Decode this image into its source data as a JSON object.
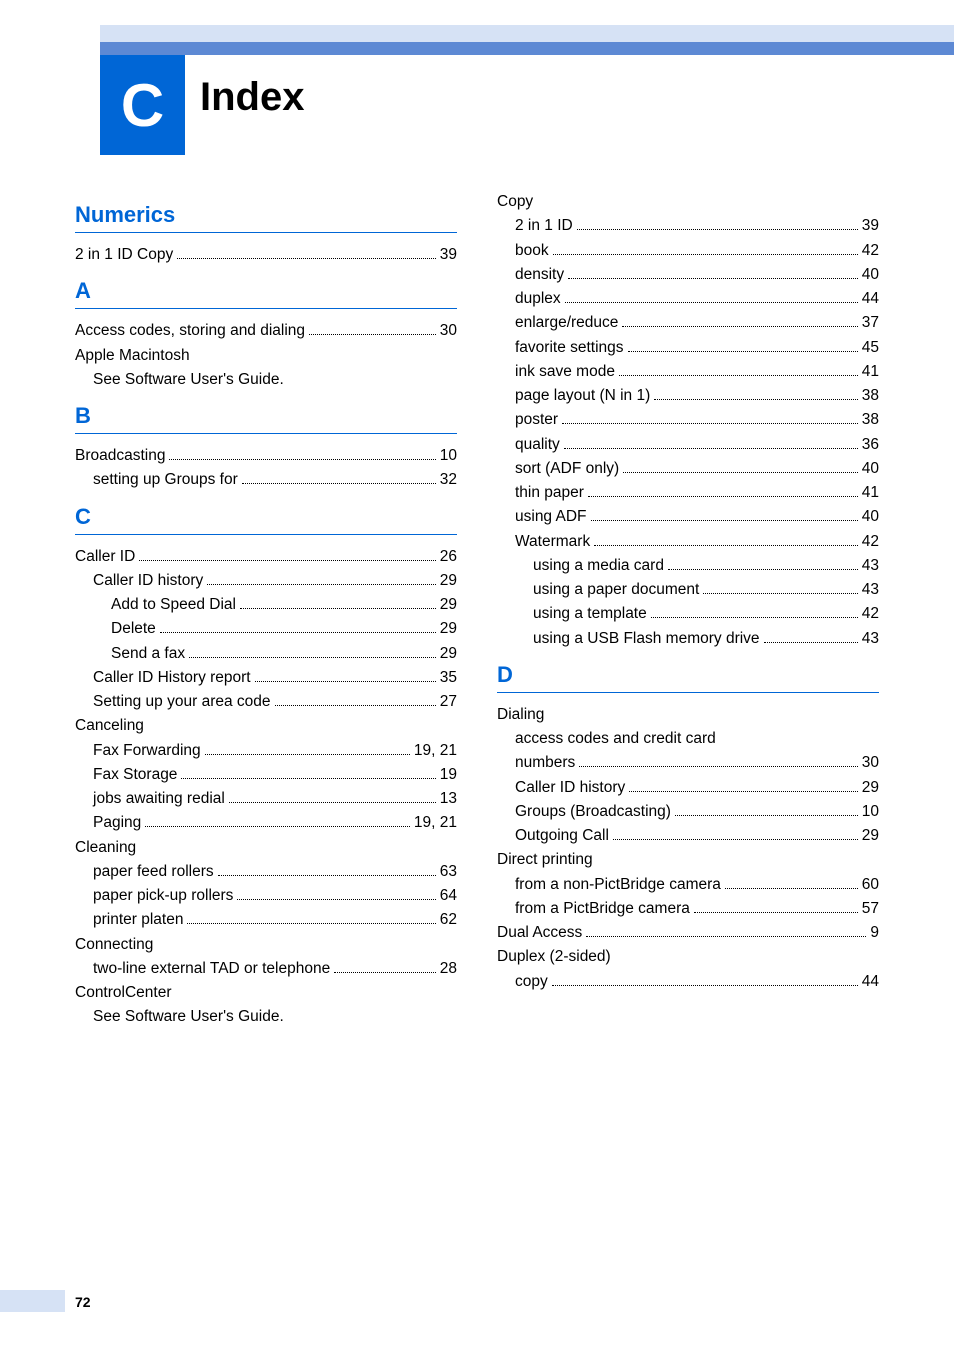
{
  "chapter_letter": "C",
  "title": "Index",
  "page_number": "72",
  "colors": {
    "header_light": "#d6e2f5",
    "header_dark": "#5d89d4",
    "chapter_box": "#0066d6",
    "section_head": "#0066d6",
    "text": "#000000",
    "bg": "#ffffff"
  },
  "left_sections": [
    {
      "head": "Numerics",
      "entries": [
        {
          "label": "2 in 1 ID Copy",
          "page": "39",
          "indent": 0
        }
      ]
    },
    {
      "head": "A",
      "entries": [
        {
          "label": "Access codes, storing and dialing",
          "page": "30",
          "indent": 0
        },
        {
          "label": "Apple Macintosh",
          "page": "",
          "indent": 0,
          "nodots": true
        },
        {
          "label": "See Software User's Guide.",
          "page": "",
          "indent": 1,
          "nodots": true
        }
      ]
    },
    {
      "head": "B",
      "entries": [
        {
          "label": "Broadcasting",
          "page": "10",
          "indent": 0
        },
        {
          "label": "setting up Groups for",
          "page": "32",
          "indent": 1
        }
      ]
    },
    {
      "head": "C",
      "entries": [
        {
          "label": "Caller ID",
          "page": "26",
          "indent": 0
        },
        {
          "label": "Caller ID history",
          "page": "29",
          "indent": 1
        },
        {
          "label": "Add to Speed Dial",
          "page": "29",
          "indent": 2
        },
        {
          "label": "Delete",
          "page": "29",
          "indent": 2
        },
        {
          "label": "Send a fax",
          "page": "29",
          "indent": 2
        },
        {
          "label": "Caller ID History report",
          "page": "35",
          "indent": 1
        },
        {
          "label": "Setting up your area code",
          "page": "27",
          "indent": 1
        },
        {
          "label": "Canceling",
          "page": "",
          "indent": 0,
          "nodots": true
        },
        {
          "label": "Fax Forwarding",
          "page": "19, 21",
          "indent": 1
        },
        {
          "label": "Fax Storage",
          "page": "19",
          "indent": 1
        },
        {
          "label": "jobs awaiting redial",
          "page": "13",
          "indent": 1
        },
        {
          "label": "Paging",
          "page": "19, 21",
          "indent": 1
        },
        {
          "label": "Cleaning",
          "page": "",
          "indent": 0,
          "nodots": true
        },
        {
          "label": "paper feed rollers",
          "page": "63",
          "indent": 1
        },
        {
          "label": "paper pick-up rollers",
          "page": "64",
          "indent": 1
        },
        {
          "label": "printer platen",
          "page": "62",
          "indent": 1
        },
        {
          "label": "Connecting",
          "page": "",
          "indent": 0,
          "nodots": true
        },
        {
          "label": "two-line external TAD or telephone",
          "page": "28",
          "indent": 1
        },
        {
          "label": "ControlCenter",
          "page": "",
          "indent": 0,
          "nodots": true
        },
        {
          "label": "See Software User's Guide.",
          "page": "",
          "indent": 1,
          "nodots": true
        }
      ]
    }
  ],
  "right_sections": [
    {
      "head": null,
      "entries": [
        {
          "label": "Copy",
          "page": "",
          "indent": 0,
          "nodots": true
        },
        {
          "label": "2 in 1 ID",
          "page": "39",
          "indent": 1
        },
        {
          "label": "book",
          "page": "42",
          "indent": 1
        },
        {
          "label": "density",
          "page": "40",
          "indent": 1
        },
        {
          "label": "duplex",
          "page": "44",
          "indent": 1
        },
        {
          "label": "enlarge/reduce",
          "page": "37",
          "indent": 1
        },
        {
          "label": "favorite settings",
          "page": "45",
          "indent": 1
        },
        {
          "label": "ink save mode",
          "page": "41",
          "indent": 1
        },
        {
          "label": "page layout (N in 1)",
          "page": "38",
          "indent": 1
        },
        {
          "label": "poster",
          "page": "38",
          "indent": 1
        },
        {
          "label": "quality",
          "page": "36",
          "indent": 1
        },
        {
          "label": "sort (ADF only)",
          "page": "40",
          "indent": 1
        },
        {
          "label": "thin paper",
          "page": "41",
          "indent": 1
        },
        {
          "label": "using ADF",
          "page": "40",
          "indent": 1
        },
        {
          "label": "Watermark",
          "page": "42",
          "indent": 1
        },
        {
          "label": "using a media card",
          "page": "43",
          "indent": 2
        },
        {
          "label": "using a paper document",
          "page": "43",
          "indent": 2
        },
        {
          "label": "using a template",
          "page": "42",
          "indent": 2
        },
        {
          "label": "using a USB Flash memory drive",
          "page": "43",
          "indent": 2
        }
      ]
    },
    {
      "head": "D",
      "entries": [
        {
          "label": "Dialing",
          "page": "",
          "indent": 0,
          "nodots": true
        },
        {
          "label": "access codes and credit card",
          "page": "",
          "indent": 1,
          "nodots": true
        },
        {
          "label": "numbers",
          "page": "30",
          "indent": 1
        },
        {
          "label": "Caller ID history",
          "page": "29",
          "indent": 1
        },
        {
          "label": "Groups (Broadcasting)",
          "page": "10",
          "indent": 1
        },
        {
          "label": "Outgoing Call",
          "page": "29",
          "indent": 1
        },
        {
          "label": "Direct printing",
          "page": "",
          "indent": 0,
          "nodots": true
        },
        {
          "label": "from a non-PictBridge camera",
          "page": "60",
          "indent": 1
        },
        {
          "label": "from a PictBridge camera",
          "page": "57",
          "indent": 1
        },
        {
          "label": "Dual Access",
          "page": "9",
          "indent": 0
        },
        {
          "label": "Duplex (2-sided)",
          "page": "",
          "indent": 0,
          "nodots": true
        },
        {
          "label": "copy",
          "page": "44",
          "indent": 1
        }
      ]
    }
  ]
}
